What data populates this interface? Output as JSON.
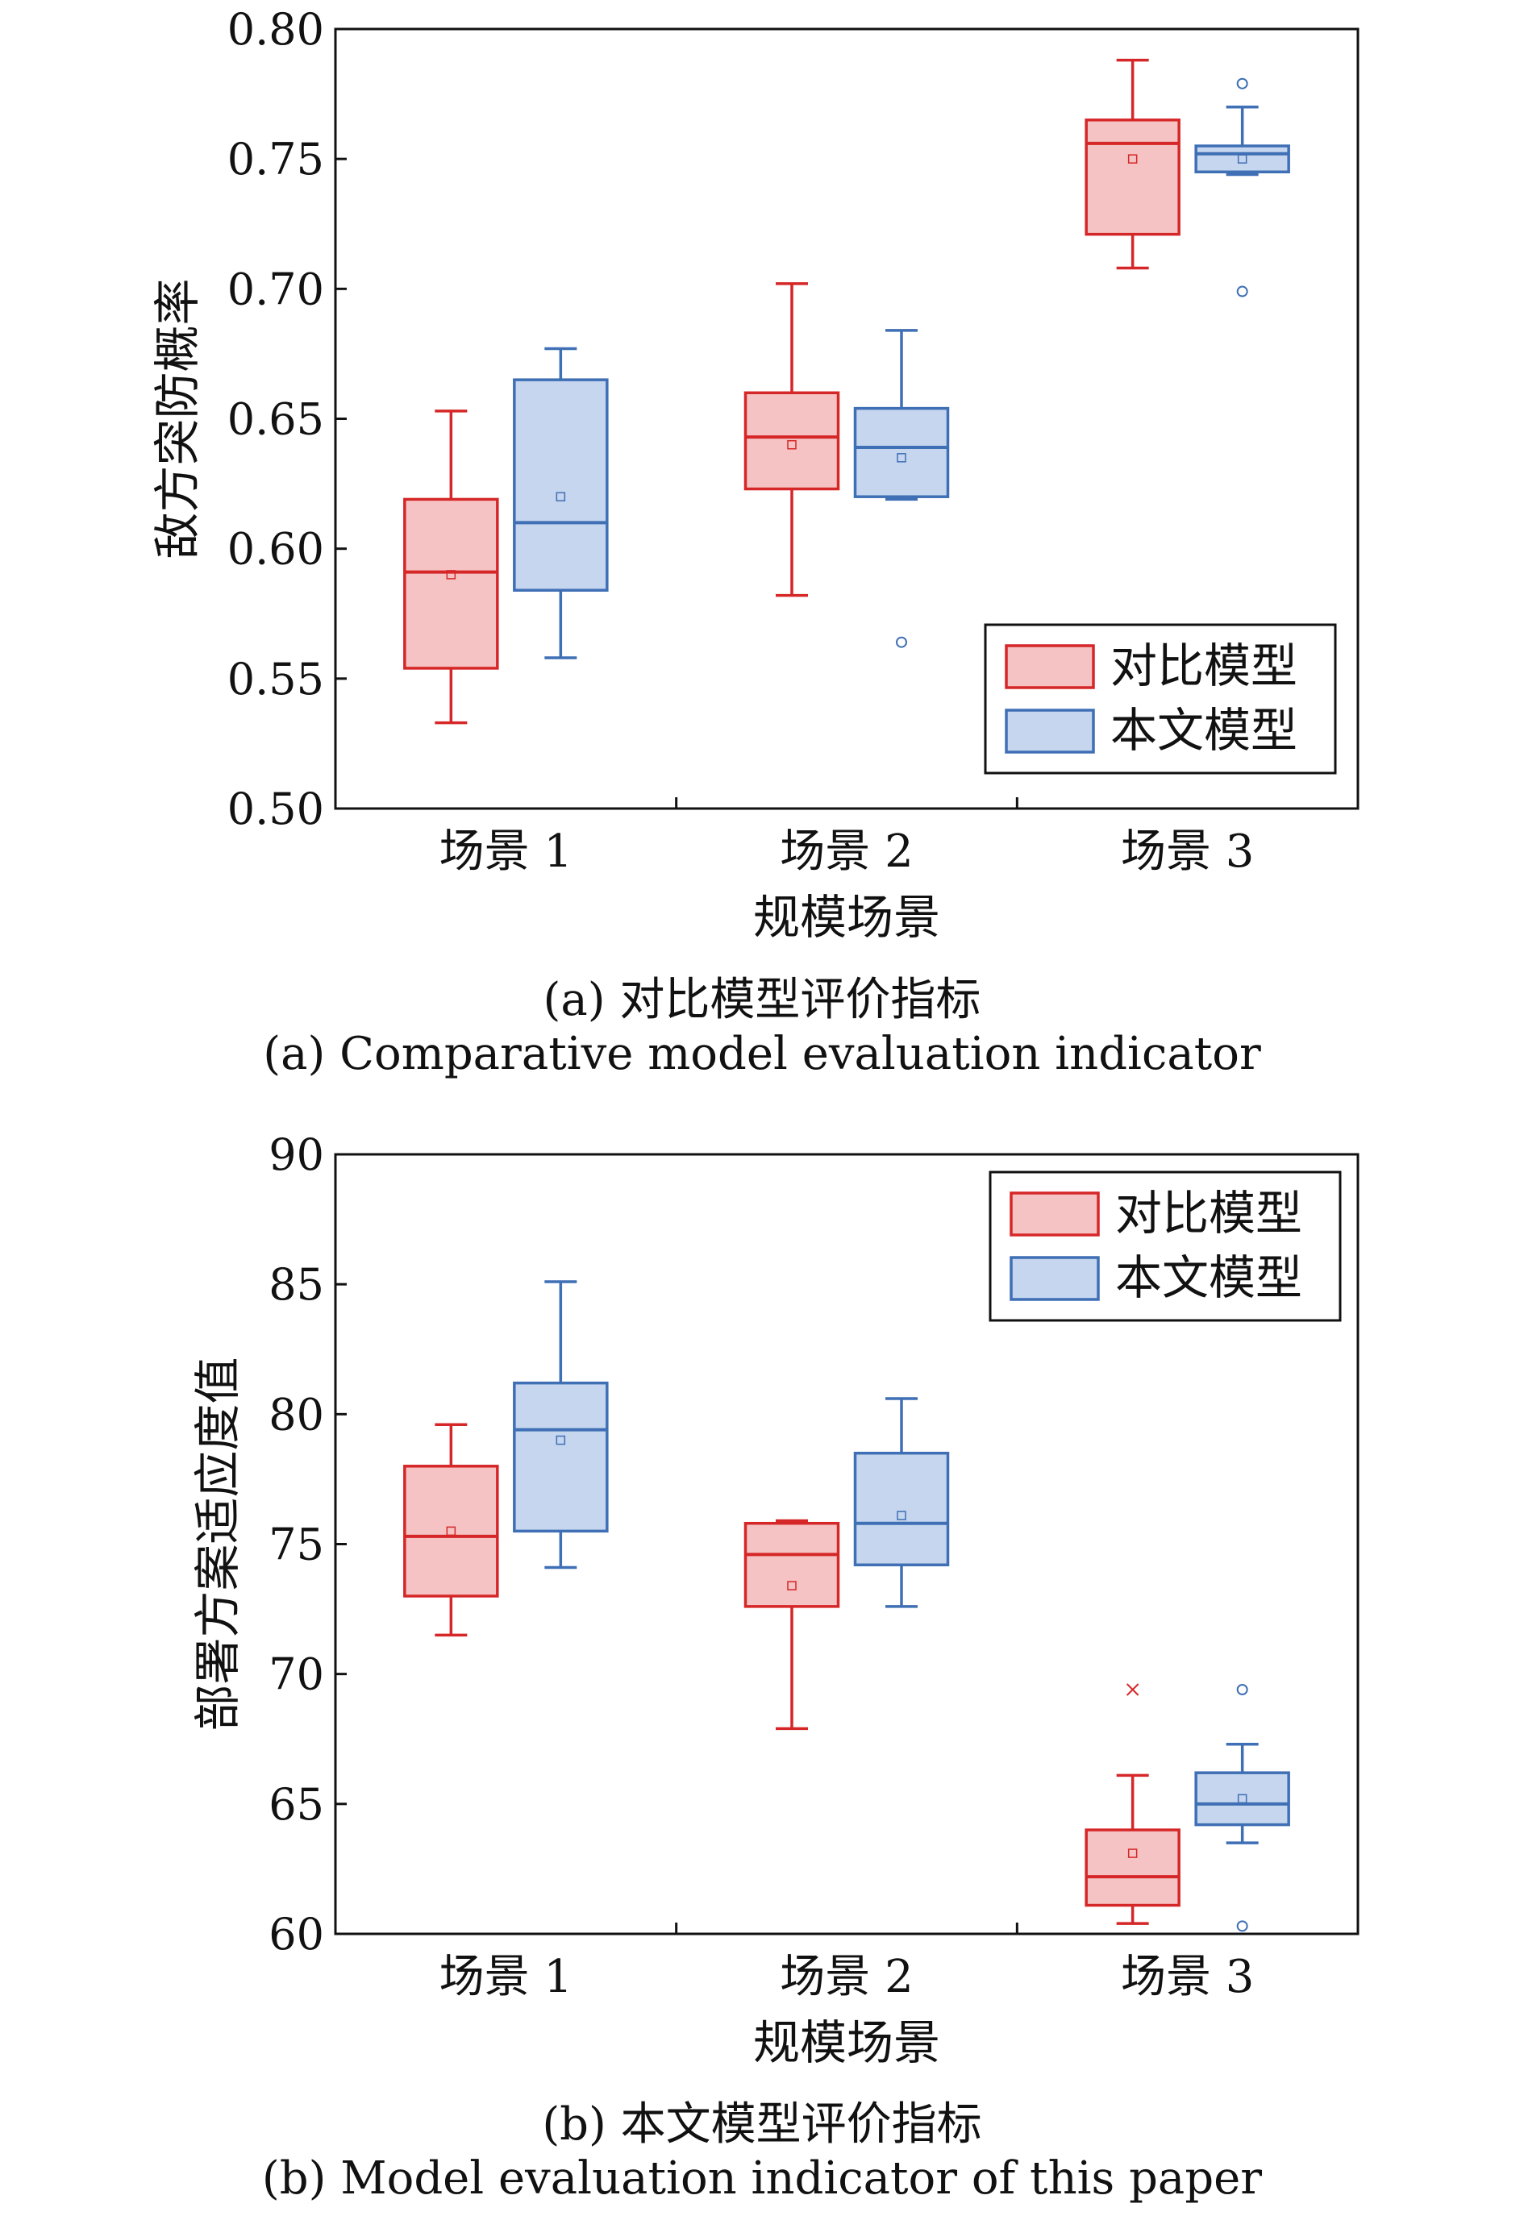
{
  "chart_data": [
    {
      "type": "box",
      "panel": "a",
      "ylabel": "敌方突防概率",
      "xlabel": "规模场景",
      "categories": [
        "场景 1",
        "场景 2",
        "场景 3"
      ],
      "ylim": [
        0.5,
        0.8
      ],
      "yticks": [
        "0.50",
        "0.55",
        "0.60",
        "0.65",
        "0.70",
        "0.75",
        "0.80"
      ],
      "grid": false,
      "legend_position": "bottom-right",
      "caption_cn": "(a) 对比模型评价指标",
      "caption_en": "(a) Comparative model evaluation indicator",
      "series": [
        {
          "name": "对比模型",
          "color": "#d62728",
          "fill": "#f5c3c3",
          "boxes": [
            {
              "min": 0.533,
              "q1": 0.554,
              "median": 0.591,
              "q3": 0.619,
              "max": 0.653,
              "mean": 0.59,
              "outliers": []
            },
            {
              "min": 0.582,
              "q1": 0.623,
              "median": 0.643,
              "q3": 0.66,
              "max": 0.702,
              "mean": 0.64,
              "outliers": []
            },
            {
              "min": 0.708,
              "q1": 0.721,
              "median": 0.756,
              "q3": 0.765,
              "max": 0.788,
              "mean": 0.75,
              "outliers": []
            }
          ]
        },
        {
          "name": "本文模型",
          "color": "#3f6fb5",
          "fill": "#c5d6ee",
          "boxes": [
            {
              "min": 0.558,
              "q1": 0.584,
              "median": 0.61,
              "q3": 0.665,
              "max": 0.677,
              "mean": 0.62,
              "outliers": []
            },
            {
              "min": 0.619,
              "q1": 0.62,
              "median": 0.639,
              "q3": 0.654,
              "max": 0.684,
              "mean": 0.635,
              "outliers": [
                0.564
              ]
            },
            {
              "min": 0.744,
              "q1": 0.745,
              "median": 0.752,
              "q3": 0.755,
              "max": 0.77,
              "mean": 0.75,
              "outliers": [
                0.779,
                0.699
              ]
            }
          ]
        }
      ]
    },
    {
      "type": "box",
      "panel": "b",
      "ylabel": "部署方案适应度值",
      "xlabel": "规模场景",
      "categories": [
        "场景 1",
        "场景 2",
        "场景 3"
      ],
      "ylim": [
        60,
        90
      ],
      "yticks": [
        "60",
        "65",
        "70",
        "75",
        "80",
        "85",
        "90"
      ],
      "grid": false,
      "legend_position": "top-right",
      "caption_cn": "(b) 本文模型评价指标",
      "caption_en": "(b) Model evaluation indicator of this paper",
      "series": [
        {
          "name": "对比模型",
          "color": "#d62728",
          "fill": "#f5c3c3",
          "boxes": [
            {
              "min": 71.5,
              "q1": 73.0,
              "median": 75.3,
              "q3": 78.0,
              "max": 79.6,
              "mean": 75.5,
              "outliers": []
            },
            {
              "min": 67.9,
              "q1": 72.6,
              "median": 74.6,
              "q3": 75.8,
              "max": 75.9,
              "mean": 73.4,
              "outliers": []
            },
            {
              "min": 60.4,
              "q1": 61.1,
              "median": 62.2,
              "q3": 64.0,
              "max": 66.1,
              "mean": 63.1,
              "outliers": [
                69.4
              ]
            }
          ]
        },
        {
          "name": "本文模型",
          "color": "#3f6fb5",
          "fill": "#c5d6ee",
          "boxes": [
            {
              "min": 74.1,
              "q1": 75.5,
              "median": 79.4,
              "q3": 81.2,
              "max": 85.1,
              "mean": 79.0,
              "outliers": []
            },
            {
              "min": 72.6,
              "q1": 74.2,
              "median": 75.8,
              "q3": 78.5,
              "max": 80.6,
              "mean": 76.1,
              "outliers": []
            },
            {
              "min": 63.5,
              "q1": 64.2,
              "median": 65.0,
              "q3": 66.2,
              "max": 67.3,
              "mean": 65.2,
              "outliers": [
                69.4,
                60.3
              ]
            }
          ]
        }
      ]
    }
  ]
}
